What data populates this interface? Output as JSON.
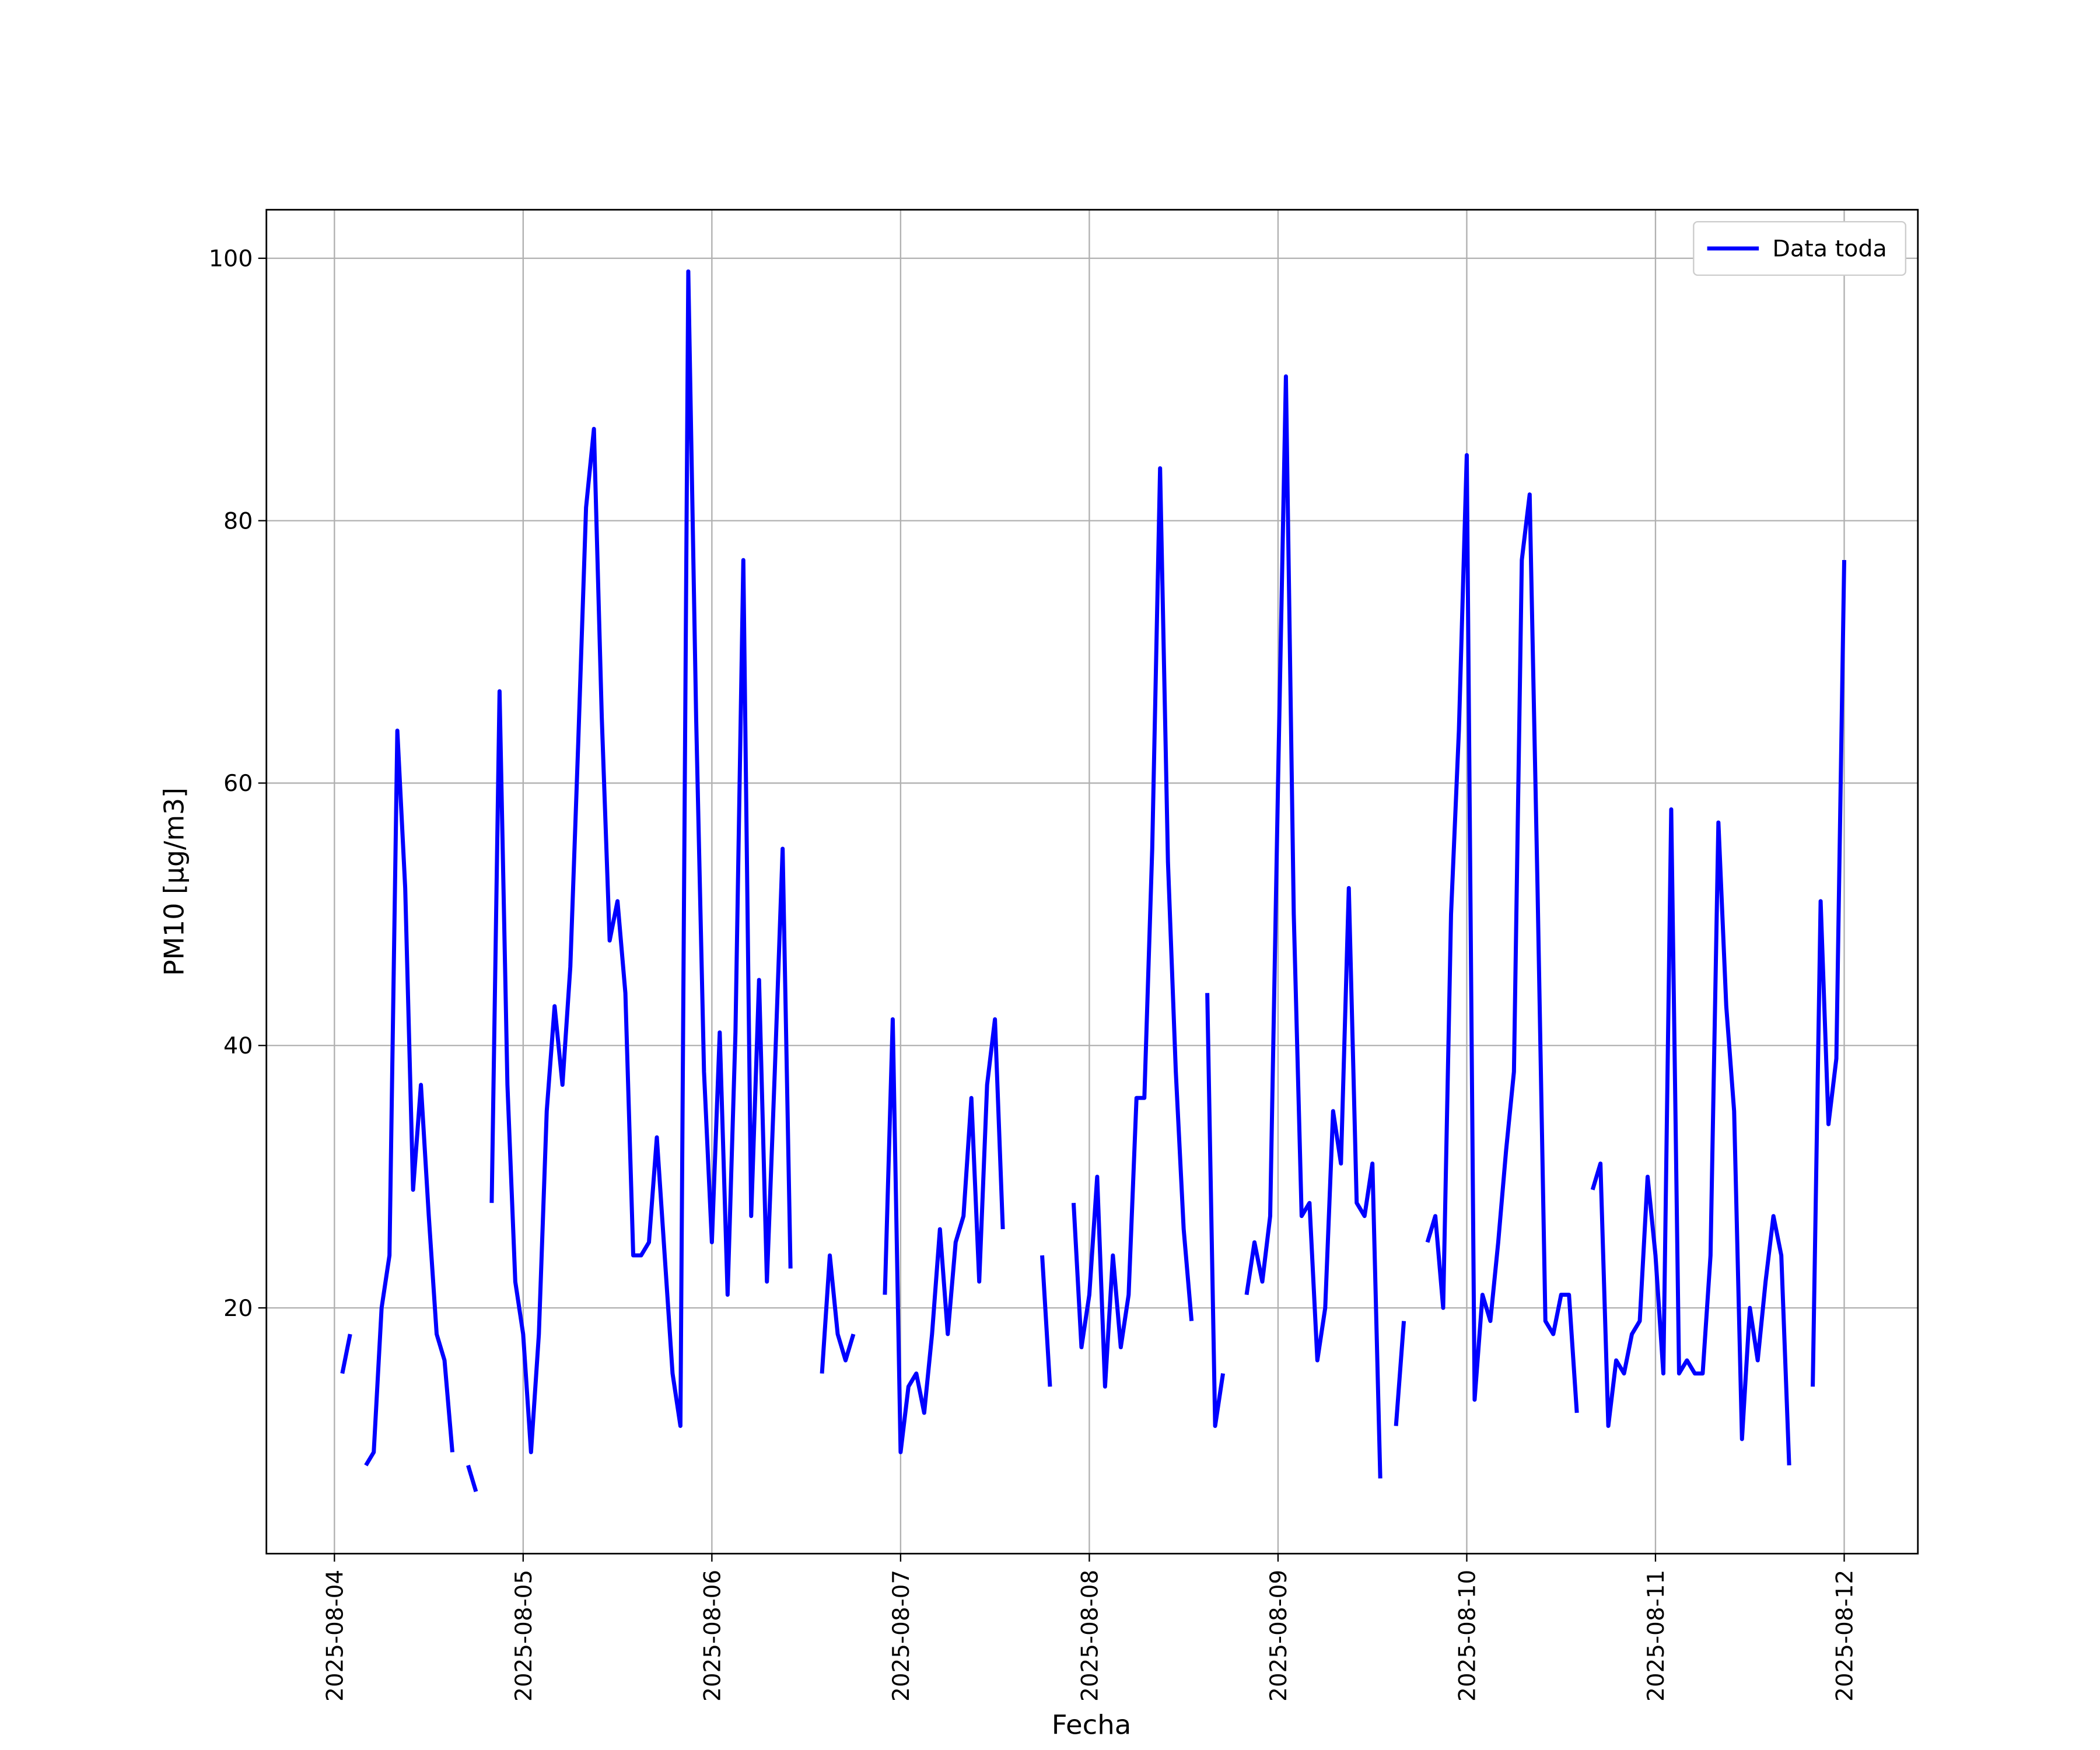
{
  "chart_data": {
    "type": "line",
    "xlabel": "Fecha",
    "ylabel": "PM10 [μg/m3]",
    "x": [
      "2025-08-04 01:00",
      "2025-08-04 02:00",
      "2025-08-04 03:00",
      "2025-08-04 04:00",
      "2025-08-04 05:00",
      "2025-08-04 06:00",
      "2025-08-04 07:00",
      "2025-08-04 08:00",
      "2025-08-04 09:00",
      "2025-08-04 10:00",
      "2025-08-04 11:00",
      "2025-08-04 12:00",
      "2025-08-04 13:00",
      "2025-08-04 14:00",
      "2025-08-04 15:00",
      "2025-08-04 16:00",
      "2025-08-04 17:00",
      "2025-08-04 18:00",
      "2025-08-04 19:00",
      "2025-08-04 20:00",
      "2025-08-04 21:00",
      "2025-08-04 22:00",
      "2025-08-04 23:00",
      "2025-08-05 00:00",
      "2025-08-05 01:00",
      "2025-08-05 02:00",
      "2025-08-05 03:00",
      "2025-08-05 04:00",
      "2025-08-05 05:00",
      "2025-08-05 06:00",
      "2025-08-05 07:00",
      "2025-08-05 08:00",
      "2025-08-05 09:00",
      "2025-08-05 10:00",
      "2025-08-05 11:00",
      "2025-08-05 12:00",
      "2025-08-05 13:00",
      "2025-08-05 14:00",
      "2025-08-05 15:00",
      "2025-08-05 16:00",
      "2025-08-05 17:00",
      "2025-08-05 18:00",
      "2025-08-05 19:00",
      "2025-08-05 20:00",
      "2025-08-05 21:00",
      "2025-08-05 22:00",
      "2025-08-05 23:00",
      "2025-08-06 00:00",
      "2025-08-06 01:00",
      "2025-08-06 02:00",
      "2025-08-06 03:00",
      "2025-08-06 04:00",
      "2025-08-06 05:00",
      "2025-08-06 06:00",
      "2025-08-06 07:00",
      "2025-08-06 08:00",
      "2025-08-06 09:00",
      "2025-08-06 10:00",
      "2025-08-06 11:00",
      "2025-08-06 12:00",
      "2025-08-06 13:00",
      "2025-08-06 14:00",
      "2025-08-06 15:00",
      "2025-08-06 16:00",
      "2025-08-06 17:00",
      "2025-08-06 18:00",
      "2025-08-06 19:00",
      "2025-08-06 20:00",
      "2025-08-06 21:00",
      "2025-08-06 22:00",
      "2025-08-06 23:00",
      "2025-08-07 00:00",
      "2025-08-07 01:00",
      "2025-08-07 02:00",
      "2025-08-07 03:00",
      "2025-08-07 04:00",
      "2025-08-07 05:00",
      "2025-08-07 06:00",
      "2025-08-07 07:00",
      "2025-08-07 08:00",
      "2025-08-07 09:00",
      "2025-08-07 10:00",
      "2025-08-07 11:00",
      "2025-08-07 12:00",
      "2025-08-07 13:00",
      "2025-08-07 14:00",
      "2025-08-07 15:00",
      "2025-08-07 16:00",
      "2025-08-07 17:00",
      "2025-08-07 18:00",
      "2025-08-07 19:00",
      "2025-08-07 20:00",
      "2025-08-07 21:00",
      "2025-08-07 22:00",
      "2025-08-07 23:00",
      "2025-08-08 00:00",
      "2025-08-08 01:00",
      "2025-08-08 02:00",
      "2025-08-08 03:00",
      "2025-08-08 04:00",
      "2025-08-08 05:00",
      "2025-08-08 06:00",
      "2025-08-08 07:00",
      "2025-08-08 08:00",
      "2025-08-08 09:00",
      "2025-08-08 10:00",
      "2025-08-08 11:00",
      "2025-08-08 12:00",
      "2025-08-08 13:00",
      "2025-08-08 14:00",
      "2025-08-08 15:00",
      "2025-08-08 16:00",
      "2025-08-08 17:00",
      "2025-08-08 18:00",
      "2025-08-08 19:00",
      "2025-08-08 20:00",
      "2025-08-08 21:00",
      "2025-08-08 22:00",
      "2025-08-08 23:00",
      "2025-08-09 00:00",
      "2025-08-09 01:00",
      "2025-08-09 02:00",
      "2025-08-09 03:00",
      "2025-08-09 04:00",
      "2025-08-09 05:00",
      "2025-08-09 06:00",
      "2025-08-09 07:00",
      "2025-08-09 08:00",
      "2025-08-09 09:00",
      "2025-08-09 10:00",
      "2025-08-09 11:00",
      "2025-08-09 12:00",
      "2025-08-09 13:00",
      "2025-08-09 14:00",
      "2025-08-09 15:00",
      "2025-08-09 16:00",
      "2025-08-09 17:00",
      "2025-08-09 18:00",
      "2025-08-09 19:00",
      "2025-08-09 20:00",
      "2025-08-09 21:00",
      "2025-08-09 22:00",
      "2025-08-09 23:00",
      "2025-08-10 00:00",
      "2025-08-10 01:00",
      "2025-08-10 02:00",
      "2025-08-10 03:00",
      "2025-08-10 04:00",
      "2025-08-10 05:00",
      "2025-08-10 06:00",
      "2025-08-10 07:00",
      "2025-08-10 08:00",
      "2025-08-10 09:00",
      "2025-08-10 10:00",
      "2025-08-10 11:00",
      "2025-08-10 12:00",
      "2025-08-10 13:00",
      "2025-08-10 14:00",
      "2025-08-10 15:00",
      "2025-08-10 16:00",
      "2025-08-10 17:00",
      "2025-08-10 18:00",
      "2025-08-10 19:00",
      "2025-08-10 20:00",
      "2025-08-10 21:00",
      "2025-08-10 22:00",
      "2025-08-10 23:00",
      "2025-08-11 00:00",
      "2025-08-11 01:00",
      "2025-08-11 02:00",
      "2025-08-11 03:00",
      "2025-08-11 04:00",
      "2025-08-11 05:00",
      "2025-08-11 06:00",
      "2025-08-11 07:00",
      "2025-08-11 08:00",
      "2025-08-11 09:00",
      "2025-08-11 10:00",
      "2025-08-11 11:00",
      "2025-08-11 12:00",
      "2025-08-11 13:00",
      "2025-08-11 14:00",
      "2025-08-11 15:00",
      "2025-08-11 16:00",
      "2025-08-11 17:00",
      "2025-08-11 18:00",
      "2025-08-11 19:00",
      "2025-08-11 20:00",
      "2025-08-11 21:00",
      "2025-08-11 22:00",
      "2025-08-11 23:00",
      "2025-08-12 00:00"
    ],
    "series": [
      {
        "name": "Data toda",
        "color": "#0000ff",
        "values": [
          15,
          18,
          null,
          8,
          9,
          20,
          24,
          64,
          52,
          29,
          37,
          27,
          18,
          16,
          9,
          null,
          8,
          6,
          null,
          28,
          67,
          37,
          22,
          18,
          9,
          18,
          35,
          43,
          37,
          46,
          63,
          81,
          87,
          65,
          48,
          51,
          44,
          24,
          24,
          25,
          33,
          24,
          15,
          11,
          99,
          65,
          38,
          25,
          41,
          21,
          41,
          77,
          27,
          45,
          22,
          38,
          55,
          23,
          null,
          null,
          null,
          15,
          24,
          18,
          16,
          18,
          null,
          null,
          null,
          21,
          42,
          9,
          14,
          15,
          12,
          18,
          26,
          18,
          25,
          27,
          36,
          22,
          37,
          42,
          26,
          null,
          null,
          null,
          null,
          24,
          14,
          null,
          null,
          28,
          17,
          21,
          30,
          14,
          24,
          17,
          21,
          36,
          36,
          55,
          84,
          54,
          38,
          26,
          19,
          null,
          44,
          11,
          15,
          null,
          null,
          21,
          25,
          22,
          27,
          60,
          91,
          50,
          27,
          28,
          16,
          20,
          35,
          31,
          52,
          28,
          27,
          31,
          7,
          null,
          11,
          19,
          null,
          null,
          25,
          27,
          20,
          50,
          64,
          85,
          13,
          21,
          19,
          25,
          32,
          38,
          77,
          82,
          52,
          19,
          18,
          21,
          21,
          12,
          null,
          29,
          31,
          11,
          16,
          15,
          18,
          19,
          30,
          24,
          15,
          58,
          15,
          16,
          15,
          15,
          24,
          57,
          43,
          35,
          10,
          20,
          16,
          22,
          27,
          24,
          8,
          null,
          null,
          14,
          51,
          34,
          39,
          77
        ]
      }
    ],
    "xlim": [
      "2025-08-03 15:21",
      "2025-08-12 09:22"
    ],
    "xticks": [
      "2025-08-04",
      "2025-08-05",
      "2025-08-06",
      "2025-08-07",
      "2025-08-08",
      "2025-08-09",
      "2025-08-10",
      "2025-08-11",
      "2025-08-12"
    ],
    "ylim": [
      1.27,
      103.7
    ],
    "yticks": [
      20,
      40,
      60,
      80,
      100
    ],
    "grid": true,
    "legend": "upper right"
  }
}
